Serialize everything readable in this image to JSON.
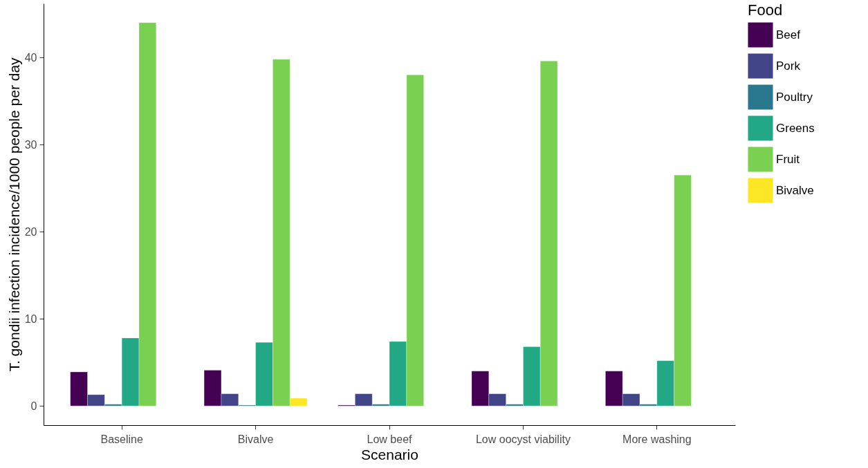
{
  "chart_data": {
    "type": "bar",
    "xlabel": "Scenario",
    "ylabel": "T. gondii infection incidence/1000 people per day",
    "legend_title": "Food",
    "legend": "right",
    "grid": false,
    "categories": [
      "Baseline",
      "Bivalve",
      "Low beef",
      "Low oocyst viability",
      "More washing"
    ],
    "ylim": [
      -2.2,
      46.2
    ],
    "yticks": [
      0,
      10,
      20,
      30,
      40
    ],
    "series": [
      {
        "name": "Beef",
        "color": "#440154",
        "values": [
          3.9,
          4.1,
          0.1,
          4.0,
          4.0
        ]
      },
      {
        "name": "Pork",
        "color": "#414487",
        "values": [
          1.3,
          1.4,
          1.4,
          1.4,
          1.4
        ]
      },
      {
        "name": "Poultry",
        "color": "#2a788e",
        "values": [
          0.2,
          0.1,
          0.2,
          0.2,
          0.2
        ]
      },
      {
        "name": "Greens",
        "color": "#22a884",
        "values": [
          7.8,
          7.3,
          7.4,
          6.8,
          5.2
        ]
      },
      {
        "name": "Fruit",
        "color": "#7ad151",
        "values": [
          44.0,
          39.8,
          38.0,
          39.6,
          26.5
        ]
      },
      {
        "name": "Bivalve",
        "color": "#fde725",
        "values": [
          null,
          0.9,
          null,
          null,
          null
        ]
      }
    ]
  }
}
